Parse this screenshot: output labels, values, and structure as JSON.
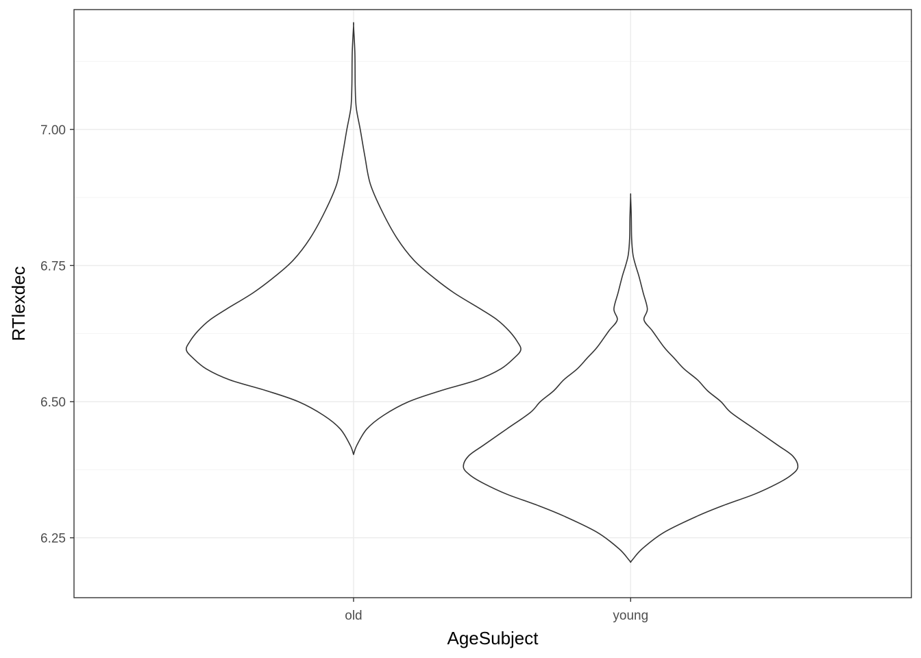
{
  "chart_data": {
    "type": "violin",
    "xlabel": "AgeSubject",
    "ylabel": "RTlexdec",
    "categories": [
      "old",
      "young"
    ],
    "ylim": [
      6.14,
      7.22
    ],
    "y_ticks": [
      6.25,
      6.5,
      6.75,
      7.0
    ],
    "y_tick_labels": [
      "6.25",
      "6.50",
      "6.75",
      "7.00"
    ],
    "grid": true,
    "legend": "none",
    "colors": {
      "outline": "#333333",
      "grid": "#ebebeb",
      "panel_border": "#333333"
    },
    "series": [
      {
        "category": "old",
        "y_min": 6.403,
        "y_max": 7.19,
        "density_profile": [
          [
            6.403,
            0.0
          ],
          [
            6.42,
            0.02
          ],
          [
            6.45,
            0.08
          ],
          [
            6.475,
            0.18
          ],
          [
            6.5,
            0.33
          ],
          [
            6.52,
            0.52
          ],
          [
            6.54,
            0.74
          ],
          [
            6.56,
            0.88
          ],
          [
            6.58,
            0.96
          ],
          [
            6.595,
            1.0
          ],
          [
            6.61,
            0.98
          ],
          [
            6.63,
            0.93
          ],
          [
            6.65,
            0.86
          ],
          [
            6.67,
            0.76
          ],
          [
            6.7,
            0.6
          ],
          [
            6.73,
            0.47
          ],
          [
            6.76,
            0.36
          ],
          [
            6.8,
            0.26
          ],
          [
            6.85,
            0.17
          ],
          [
            6.9,
            0.1
          ],
          [
            6.95,
            0.068
          ],
          [
            7.0,
            0.04
          ],
          [
            7.04,
            0.016
          ],
          [
            7.08,
            0.01
          ],
          [
            7.14,
            0.008
          ],
          [
            7.19,
            0.0
          ]
        ]
      },
      {
        "category": "young",
        "y_min": 6.205,
        "y_max": 6.877,
        "density_profile": [
          [
            6.205,
            0.0
          ],
          [
            6.21,
            0.012
          ],
          [
            6.23,
            0.07
          ],
          [
            6.26,
            0.2
          ],
          [
            6.29,
            0.4
          ],
          [
            6.31,
            0.56
          ],
          [
            6.33,
            0.74
          ],
          [
            6.35,
            0.88
          ],
          [
            6.365,
            0.96
          ],
          [
            6.38,
            1.0
          ],
          [
            6.4,
            0.97
          ],
          [
            6.42,
            0.88
          ],
          [
            6.45,
            0.74
          ],
          [
            6.48,
            0.6
          ],
          [
            6.5,
            0.54
          ],
          [
            6.52,
            0.46
          ],
          [
            6.54,
            0.4
          ],
          [
            6.56,
            0.32
          ],
          [
            6.58,
            0.26
          ],
          [
            6.6,
            0.2
          ],
          [
            6.63,
            0.13
          ],
          [
            6.65,
            0.08
          ],
          [
            6.67,
            0.1
          ],
          [
            6.7,
            0.075
          ],
          [
            6.73,
            0.05
          ],
          [
            6.75,
            0.03
          ],
          [
            6.77,
            0.014
          ],
          [
            6.8,
            0.006
          ],
          [
            6.84,
            0.004
          ],
          [
            6.877,
            0.0
          ]
        ]
      }
    ]
  }
}
